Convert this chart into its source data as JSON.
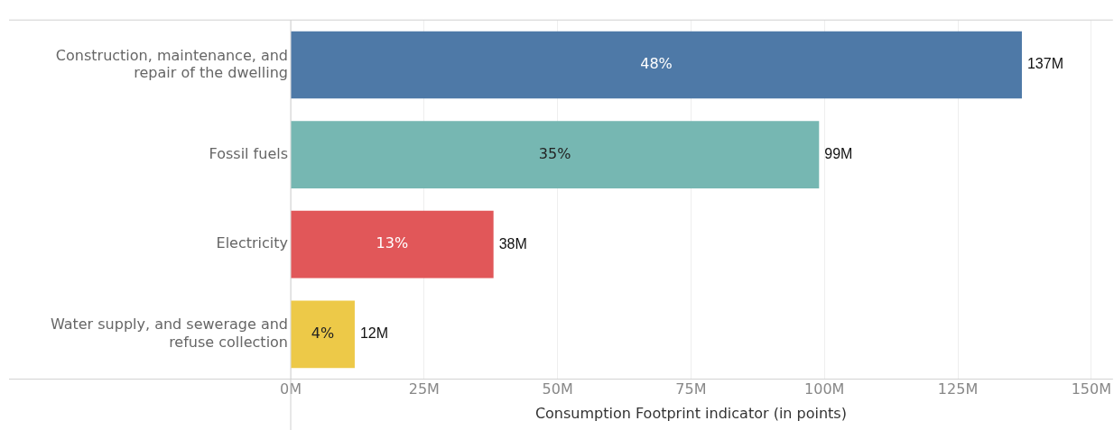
{
  "chart_data": {
    "type": "bar",
    "orientation": "horizontal",
    "xlabel": "Consumption Footprint indicator (in points)",
    "categories": [
      "Construction, maintenance, and repair of the dwelling",
      "Fossil fuels",
      "Electricity",
      "Water supply, and sewerage and refuse collection"
    ],
    "values": [
      137,
      99,
      38,
      12
    ],
    "colors": [
      "#4e79a7",
      "#76b7b2",
      "#e15759",
      "#edc948"
    ],
    "value_labels": [
      "137M",
      "99M",
      "38M",
      "12M"
    ],
    "annotations": [
      {
        "text": "48%",
        "x": 68.5,
        "y": "Construction, maintenance, and repair of the dwelling"
      },
      {
        "text": "35%",
        "x": 49.5,
        "y": "Fossil fuels"
      },
      {
        "text": "13%",
        "x": 19,
        "y": "Electricity"
      },
      {
        "text": "4%",
        "x": 6,
        "y": "Water supply, and sewerage and refuse collection"
      }
    ],
    "xlim": [
      0,
      150
    ],
    "xticks": [
      {
        "value": 0,
        "label": "0M"
      },
      {
        "value": 25,
        "label": "25M"
      },
      {
        "value": 50,
        "label": "50M"
      },
      {
        "value": 75,
        "label": "75M"
      },
      {
        "value": 100,
        "label": "100M"
      },
      {
        "value": 125,
        "label": "125M"
      },
      {
        "value": 150,
        "label": "150M"
      }
    ],
    "grid": "x",
    "legend": false
  }
}
